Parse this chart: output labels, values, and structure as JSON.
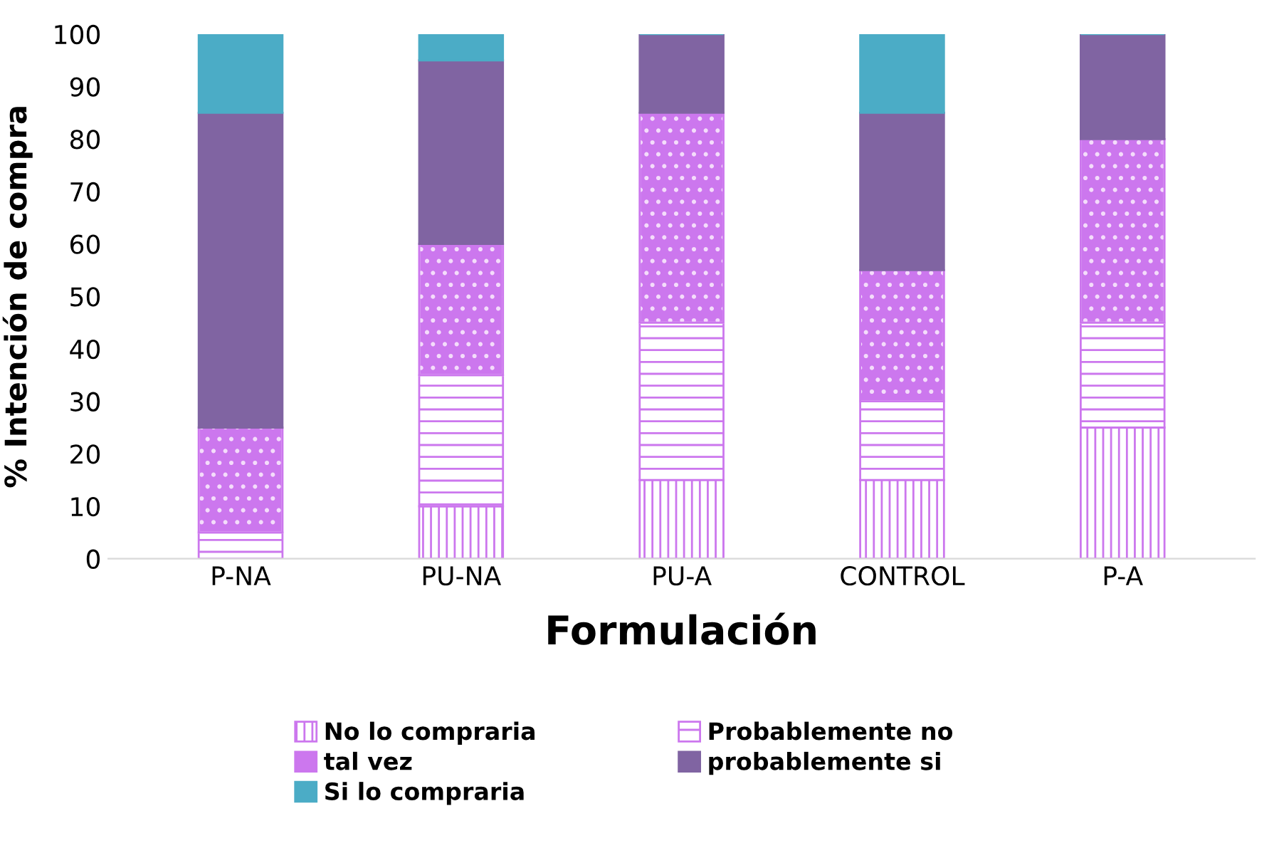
{
  "chart_data": {
    "type": "bar",
    "stacked": true,
    "xlabel": "Formulación",
    "ylabel": "% Intención de compra",
    "categories": [
      "P-NA",
      "PU-NA",
      "PU-A",
      "CONTROL",
      "P-A"
    ],
    "series": [
      {
        "name": "No lo compraria",
        "color": "#cc77ee",
        "values": [
          0,
          10,
          15,
          15,
          25
        ]
      },
      {
        "name": "Probablemente no",
        "color": "#cc77ee",
        "values": [
          5,
          25,
          30,
          15,
          20
        ]
      },
      {
        "name": "tal vez",
        "color": "#cc77ee",
        "values": [
          20,
          25,
          40,
          25,
          35
        ]
      },
      {
        "name": "probablemente si",
        "color": "#8064a2",
        "values": [
          60,
          35,
          15,
          30,
          20
        ]
      },
      {
        "name": "Si lo compraria",
        "color": "#4bacc6",
        "values": [
          15,
          5,
          0,
          15,
          0
        ]
      }
    ],
    "ylim": [
      0,
      100
    ],
    "yticks": [
      0,
      10,
      20,
      30,
      40,
      50,
      60,
      70,
      80,
      90,
      100
    ],
    "grid": false,
    "legend": "bottom"
  }
}
